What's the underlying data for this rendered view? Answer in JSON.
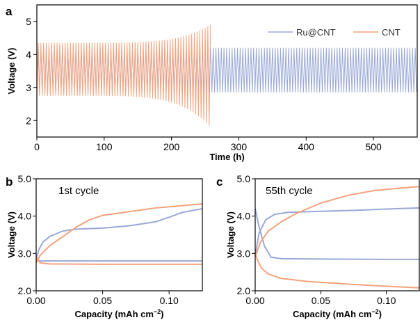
{
  "colors": {
    "ru_cnt": "#9aa8d6",
    "cnt": "#f4a27c",
    "axis": "#000000"
  },
  "chart_data": [
    {
      "panel": "a",
      "type": "line",
      "xlabel": "Time (h)",
      "ylabel": "Voltage (V)",
      "xlim": [
        0,
        565
      ],
      "ylim": [
        1.5,
        5.5
      ],
      "xticks": [
        0,
        100,
        200,
        300,
        400,
        500
      ],
      "yticks": [
        2,
        3,
        4,
        5
      ],
      "legend_position": "top-right",
      "grid": false,
      "series": [
        {
          "name": "Ru@CNT",
          "color": "#9aa8d6",
          "description_points": {
            "charge_voltage": 4.2,
            "discharge_voltage": 2.85,
            "start_h": 0,
            "end_h": 565,
            "period_h": 4
          }
        },
        {
          "name": "CNT",
          "color": "#f4a27c",
          "description_points": {
            "charge_voltage_start": 4.35,
            "charge_voltage_end": 4.9,
            "discharge_voltage_start": 2.75,
            "discharge_voltage_end": 1.8,
            "start_h": 0,
            "end_h": 258,
            "period_h": 4
          }
        }
      ]
    },
    {
      "panel": "b",
      "type": "line",
      "annotation": "1st  cycle",
      "xlabel": "Capacity (mAh cm",
      "xlabel_sup": "−2",
      "xlabel_end": ")",
      "ylabel": "Voltage (V)",
      "xlim": [
        0,
        0.125
      ],
      "ylim": [
        2.0,
        5.0
      ],
      "xticks": [
        "0.00",
        "0.05",
        "0.10"
      ],
      "yticks": [
        "2.0",
        "3.0",
        "4.0",
        "5.0"
      ],
      "series": [
        {
          "name": "Ru@CNT",
          "color": "#9aa8d6",
          "charge": {
            "x": [
              0,
              0.002,
              0.005,
              0.01,
              0.02,
              0.03,
              0.05,
              0.07,
              0.09,
              0.1,
              0.11,
              0.125
            ],
            "y": [
              2.85,
              3.1,
              3.3,
              3.45,
              3.6,
              3.65,
              3.68,
              3.74,
              3.85,
              3.97,
              4.1,
              4.2
            ]
          },
          "discharge": {
            "x": [
              0,
              0.003,
              0.01,
              0.05,
              0.1,
              0.125
            ],
            "y": [
              2.82,
              2.8,
              2.8,
              2.8,
              2.8,
              2.8
            ]
          }
        },
        {
          "name": "CNT",
          "color": "#f4a27c",
          "charge": {
            "x": [
              0,
              0.003,
              0.01,
              0.02,
              0.03,
              0.04,
              0.05,
              0.07,
              0.09,
              0.11,
              0.125
            ],
            "y": [
              2.75,
              2.95,
              3.2,
              3.45,
              3.7,
              3.9,
              4.02,
              4.12,
              4.22,
              4.28,
              4.33
            ]
          },
          "discharge": {
            "x": [
              0,
              0.003,
              0.01,
              0.05,
              0.1,
              0.125
            ],
            "y": [
              2.9,
              2.75,
              2.72,
              2.71,
              2.71,
              2.71
            ]
          }
        }
      ]
    },
    {
      "panel": "c",
      "type": "line",
      "annotation": "55th  cycle",
      "xlabel": "Capacity (mAh cm",
      "xlabel_sup": "−2",
      "xlabel_end": ")",
      "ylabel": "Voltage (V)",
      "xlim": [
        0,
        0.125
      ],
      "ylim": [
        2.0,
        5.0
      ],
      "xticks": [
        "0.00",
        "0.05",
        "0.10"
      ],
      "yticks": [
        "2.0",
        "3.0",
        "4.0",
        "5.0"
      ],
      "series": [
        {
          "name": "Ru@CNT",
          "color": "#9aa8d6",
          "charge": {
            "x": [
              0,
              0.003,
              0.008,
              0.015,
              0.025,
              0.05,
              0.08,
              0.1,
              0.125
            ],
            "y": [
              2.95,
              3.55,
              3.9,
              4.05,
              4.1,
              4.13,
              4.16,
              4.19,
              4.22
            ]
          },
          "discharge": {
            "x": [
              0,
              0.003,
              0.007,
              0.012,
              0.02,
              0.05,
              0.1,
              0.125
            ],
            "y": [
              4.2,
              3.7,
              3.2,
              2.9,
              2.86,
              2.85,
              2.84,
              2.84
            ]
          }
        },
        {
          "name": "CNT",
          "color": "#f4a27c",
          "charge": {
            "x": [
              0,
              0.004,
              0.01,
              0.02,
              0.03,
              0.05,
              0.07,
              0.09,
              0.11,
              0.125
            ],
            "y": [
              2.9,
              3.3,
              3.6,
              3.85,
              4.05,
              4.35,
              4.55,
              4.68,
              4.75,
              4.79
            ]
          },
          "discharge": {
            "x": [
              0,
              0.002,
              0.005,
              0.01,
              0.02,
              0.04,
              0.07,
              0.1,
              0.125
            ],
            "y": [
              3.0,
              2.8,
              2.6,
              2.45,
              2.33,
              2.25,
              2.18,
              2.12,
              2.08
            ]
          }
        }
      ]
    }
  ]
}
